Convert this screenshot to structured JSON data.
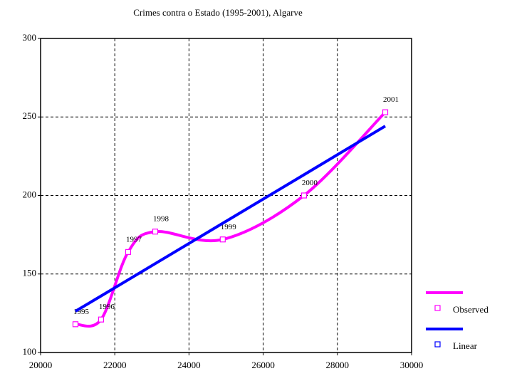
{
  "chart_data": {
    "type": "line",
    "title": "Crimes contra o Estado (1995-2001), Algarve",
    "xlim": [
      20000,
      30000
    ],
    "xticks": [
      20000,
      22000,
      24000,
      26000,
      28000,
      30000
    ],
    "ylim": [
      100,
      300
    ],
    "yticks": [
      100,
      150,
      200,
      250,
      300
    ],
    "grid": true,
    "legend": "right",
    "series": [
      {
        "name": "Observed",
        "color": "#ff00ff",
        "smooth": true,
        "markers": true,
        "x": [
          20940,
          21630,
          22360,
          23090,
          24910,
          27100,
          29290
        ],
        "values": [
          118,
          121,
          164,
          177,
          172,
          200,
          253
        ],
        "point_labels": [
          "1995",
          "1996",
          "1997",
          "1998",
          "1999",
          "2000",
          "2001"
        ]
      },
      {
        "name": "Linear",
        "color": "#0000ff",
        "smooth": false,
        "markers": false,
        "x": [
          20940,
          21630,
          22360,
          23090,
          24910,
          27100,
          29290
        ],
        "values": [
          126.3,
          136.0,
          146.3,
          156.6,
          182.3,
          213.2,
          244.2
        ]
      }
    ]
  }
}
